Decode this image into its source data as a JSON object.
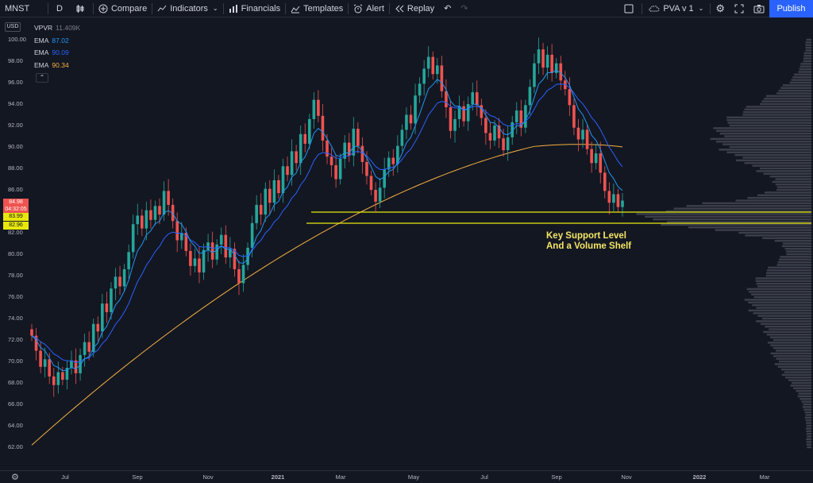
{
  "toolbar": {
    "symbol": "MNST",
    "interval": "D",
    "compare_label": "Compare",
    "indicators_label": "Indicators",
    "financials_label": "Financials",
    "templates_label": "Templates",
    "alert_label": "Alert",
    "replay_label": "Replay",
    "layout_name": "PVA v 1",
    "publish_label": "Publish"
  },
  "legend": {
    "vpvr_name": "VPVR",
    "vpvr_value": "11.409K",
    "ema1_name": "EMA",
    "ema1_value": "87.02",
    "ema2_name": "EMA",
    "ema2_value": "90.09",
    "ema3_name": "EMA",
    "ema3_value": "90.34",
    "toggle_glyph": "⌃"
  },
  "price_axis": {
    "currency": "USD",
    "ticks": [
      "100.00",
      "98.00",
      "96.00",
      "94.00",
      "92.00",
      "90.00",
      "88.00",
      "86.00",
      "84.00",
      "82.00",
      "80.00",
      "78.00",
      "76.00",
      "74.00",
      "72.00",
      "70.00",
      "68.00",
      "66.00",
      "64.00",
      "62.00"
    ],
    "current_price": "84.98",
    "countdown": "04:32:05",
    "support_top": "83.99",
    "support_bottom": "82.96"
  },
  "time_axis": {
    "ticks": [
      "Jul",
      "Sep",
      "Nov",
      "2021",
      "Mar",
      "May",
      "Jul",
      "Sep",
      "Nov",
      "2022",
      "Mar"
    ]
  },
  "annotation": {
    "line1": "Key Support Level",
    "line2": "And a Volume Shelf"
  },
  "colors": {
    "up": "#26a69a",
    "down": "#ef5350",
    "ema_fast": "#2196f3",
    "ema_mid": "#2962ff",
    "ema_slow": "#f5b041",
    "support": "#e8e80c",
    "background": "#131722"
  },
  "chart_data": {
    "type": "candlestick",
    "symbol": "MNST",
    "interval": "D",
    "ylim": [
      61,
      101
    ],
    "support_levels": [
      83.99,
      82.96
    ],
    "close": [
      72.4,
      71.0,
      69.5,
      70.2,
      68.6,
      67.8,
      69.0,
      68.3,
      69.4,
      70.1,
      68.9,
      70.6,
      71.8,
      70.9,
      73.5,
      72.8,
      75.4,
      74.6,
      76.8,
      77.9,
      77.0,
      78.6,
      80.2,
      82.8,
      83.6,
      82.4,
      84.1,
      83.2,
      84.5,
      83.7,
      85.9,
      84.6,
      83.1,
      81.3,
      82.0,
      80.3,
      78.9,
      79.6,
      78.3,
      80.4,
      81.1,
      79.5,
      80.9,
      81.8,
      79.7,
      80.5,
      78.6,
      77.3,
      79.0,
      80.6,
      82.9,
      84.6,
      83.7,
      86.1,
      84.8,
      86.9,
      85.7,
      88.2,
      87.4,
      89.6,
      88.5,
      91.2,
      90.3,
      92.6,
      94.4,
      92.9,
      90.6,
      89.1,
      88.3,
      87.0,
      88.9,
      90.4,
      89.2,
      91.7,
      90.1,
      88.6,
      87.3,
      86.0,
      84.9,
      86.2,
      87.9,
      89.0,
      88.4,
      90.1,
      91.6,
      93.0,
      92.2,
      94.8,
      95.9,
      97.3,
      98.4,
      96.8,
      97.6,
      95.2,
      93.7,
      91.5,
      92.6,
      93.8,
      92.4,
      94.0,
      95.1,
      93.9,
      92.7,
      91.3,
      90.6,
      92.0,
      90.8,
      89.7,
      90.9,
      92.3,
      93.4,
      91.8,
      93.9,
      95.6,
      97.8,
      99.1,
      97.4,
      98.6,
      96.9,
      97.8,
      96.2,
      95.4,
      93.9,
      91.8,
      90.7,
      91.6,
      89.8,
      88.5,
      89.4,
      87.6,
      85.9,
      84.8,
      85.6,
      84.4,
      85.0
    ],
    "ema_fast_last": 87.02,
    "ema_mid_last": 90.09,
    "ema_slow_last": 90.34,
    "volume_profile_peak_near": 83.5
  }
}
